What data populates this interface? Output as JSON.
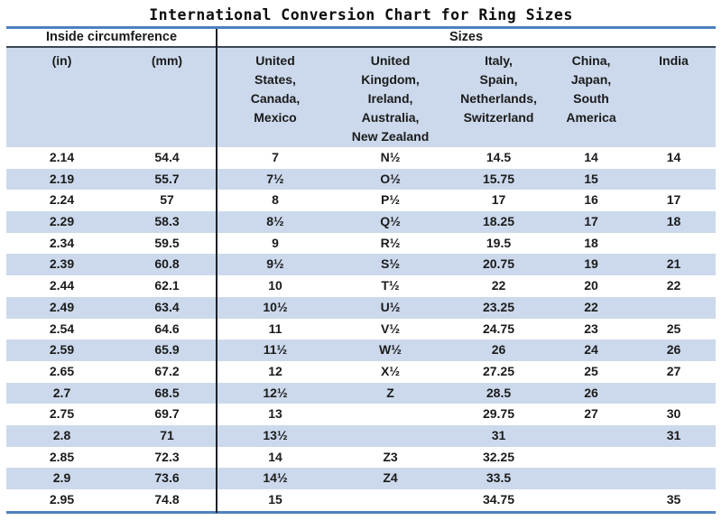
{
  "title": "International Conversion Chart for Ring Sizes",
  "colors": {
    "accent_line": "#4f81bd",
    "header_rule": "#3c4654",
    "stripe": "#ccd9ec",
    "divider": "#1c2026"
  },
  "chart_data": {
    "type": "table",
    "title": "International Conversion Chart for Ring Sizes",
    "group_headers": [
      {
        "label": "Inside circumference",
        "span": 2
      },
      {
        "label": "Sizes",
        "span": 5
      }
    ],
    "columns": [
      "(in)",
      "(mm)",
      "United\nStates,\nCanada,\nMexico",
      "United\nKingdom,\nIreland,\nAustralia,\nNew Zealand",
      "Italy,\nSpain,\nNetherlands,\nSwitzerland",
      "China,\nJapan,\nSouth\nAmerica",
      "India"
    ],
    "rows": [
      [
        "2.14",
        "54.4",
        "7",
        "N½",
        "14.5",
        "14",
        "14"
      ],
      [
        "2.19",
        "55.7",
        "7½",
        "O½",
        "15.75",
        "15",
        ""
      ],
      [
        "2.24",
        "57",
        "8",
        "P½",
        "17",
        "16",
        "17"
      ],
      [
        "2.29",
        "58.3",
        "8½",
        "Q½",
        "18.25",
        "17",
        "18"
      ],
      [
        "2.34",
        "59.5",
        "9",
        "R½",
        "19.5",
        "18",
        ""
      ],
      [
        "2.39",
        "60.8",
        "9½",
        "S½",
        "20.75",
        "19",
        "21"
      ],
      [
        "2.44",
        "62.1",
        "10",
        "T½",
        "22",
        "20",
        "22"
      ],
      [
        "2.49",
        "63.4",
        "10½",
        "U½",
        "23.25",
        "22",
        ""
      ],
      [
        "2.54",
        "64.6",
        "11",
        "V½",
        "24.75",
        "23",
        "25"
      ],
      [
        "2.59",
        "65.9",
        "11½",
        "W½",
        "26",
        "24",
        "26"
      ],
      [
        "2.65",
        "67.2",
        "12",
        "X½",
        "27.25",
        "25",
        "27"
      ],
      [
        "2.7",
        "68.5",
        "12½",
        "Z",
        "28.5",
        "26",
        ""
      ],
      [
        "2.75",
        "69.7",
        "13",
        "",
        "29.75",
        "27",
        "30"
      ],
      [
        "2.8",
        "71",
        "13½",
        "",
        "31",
        "",
        "31"
      ],
      [
        "2.85",
        "72.3",
        "14",
        "Z3",
        "32.25",
        "",
        ""
      ],
      [
        "2.9",
        "73.6",
        "14½",
        "Z4",
        "33.5",
        "",
        ""
      ],
      [
        "2.95",
        "74.8",
        "15",
        "",
        "34.75",
        "",
        "35"
      ]
    ]
  }
}
